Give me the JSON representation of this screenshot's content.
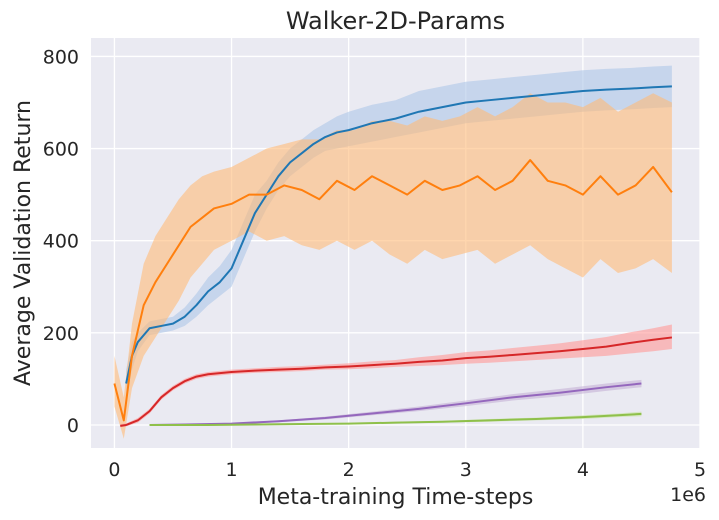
{
  "chart_data": {
    "type": "line",
    "title": "Walker-2D-Params",
    "xlabel": "Meta-training Time-steps",
    "ylabel": "Average Validation Return",
    "x_multiplier_label": "1e6",
    "xlim": [
      -0.2,
      5.0
    ],
    "ylim": [
      -50,
      840
    ],
    "xticks": [
      0,
      1,
      2,
      3,
      4,
      5
    ],
    "yticks": [
      0,
      200,
      400,
      600,
      800
    ],
    "grid": true,
    "legend": "none",
    "series": [
      {
        "color": "#1f77b4",
        "band_color": "#aec7e8",
        "x": [
          0.1,
          0.15,
          0.2,
          0.3,
          0.4,
          0.5,
          0.6,
          0.7,
          0.8,
          0.9,
          1.0,
          1.1,
          1.2,
          1.3,
          1.4,
          1.5,
          1.6,
          1.7,
          1.8,
          1.9,
          2.0,
          2.2,
          2.4,
          2.6,
          2.8,
          3.0,
          3.2,
          3.4,
          3.6,
          3.8,
          4.0,
          4.2,
          4.4,
          4.6,
          4.76
        ],
        "y": [
          90,
          150,
          180,
          210,
          215,
          220,
          235,
          260,
          290,
          310,
          340,
          400,
          460,
          500,
          540,
          570,
          590,
          610,
          625,
          635,
          640,
          655,
          665,
          680,
          690,
          700,
          705,
          710,
          715,
          720,
          725,
          728,
          730,
          733,
          735
        ],
        "lower": [
          60,
          120,
          160,
          195,
          200,
          205,
          215,
          235,
          260,
          280,
          300,
          360,
          420,
          470,
          510,
          540,
          560,
          580,
          595,
          600,
          605,
          615,
          625,
          635,
          645,
          655,
          660,
          665,
          670,
          675,
          680,
          683,
          685,
          688,
          690
        ],
        "upper": [
          120,
          180,
          200,
          225,
          230,
          235,
          255,
          285,
          320,
          345,
          380,
          440,
          500,
          530,
          570,
          600,
          620,
          640,
          655,
          670,
          680,
          695,
          705,
          725,
          735,
          745,
          750,
          755,
          760,
          765,
          770,
          773,
          775,
          778,
          780
        ]
      },
      {
        "color": "#ff7f0e",
        "band_color": "#ffbb78",
        "x": [
          0.0,
          0.08,
          0.15,
          0.25,
          0.35,
          0.45,
          0.55,
          0.65,
          0.75,
          0.85,
          1.0,
          1.15,
          1.3,
          1.45,
          1.6,
          1.75,
          1.9,
          2.05,
          2.2,
          2.35,
          2.5,
          2.65,
          2.8,
          2.95,
          3.1,
          3.25,
          3.4,
          3.55,
          3.7,
          3.85,
          4.0,
          4.15,
          4.3,
          4.45,
          4.6,
          4.76
        ],
        "y": [
          90,
          10,
          150,
          260,
          310,
          350,
          390,
          430,
          450,
          470,
          480,
          500,
          500,
          520,
          510,
          490,
          530,
          510,
          540,
          520,
          500,
          530,
          510,
          520,
          540,
          510,
          530,
          575,
          530,
          520,
          500,
          540,
          500,
          520,
          560,
          505
        ],
        "lower": [
          40,
          -30,
          80,
          150,
          190,
          230,
          270,
          320,
          350,
          380,
          400,
          420,
          400,
          410,
          390,
          380,
          400,
          380,
          400,
          370,
          350,
          380,
          360,
          370,
          380,
          350,
          370,
          390,
          360,
          340,
          320,
          360,
          330,
          340,
          360,
          330
        ],
        "upper": [
          150,
          60,
          220,
          350,
          410,
          450,
          490,
          520,
          540,
          550,
          560,
          580,
          600,
          610,
          620,
          620,
          640,
          640,
          660,
          660,
          650,
          670,
          660,
          670,
          690,
          670,
          690,
          720,
          700,
          700,
          690,
          710,
          680,
          700,
          720,
          700
        ]
      },
      {
        "color": "#d62728",
        "band_color": "#ff9896",
        "x": [
          0.05,
          0.1,
          0.2,
          0.3,
          0.4,
          0.5,
          0.6,
          0.7,
          0.8,
          1.0,
          1.2,
          1.4,
          1.6,
          1.8,
          2.0,
          2.2,
          2.4,
          2.6,
          2.8,
          3.0,
          3.2,
          3.4,
          3.6,
          3.8,
          4.0,
          4.2,
          4.4,
          4.6,
          4.76
        ],
        "y": [
          -2,
          0,
          10,
          30,
          60,
          80,
          95,
          105,
          110,
          115,
          118,
          120,
          122,
          125,
          127,
          130,
          133,
          137,
          140,
          145,
          148,
          152,
          156,
          160,
          165,
          170,
          178,
          185,
          190
        ],
        "lower": [
          -5,
          -3,
          5,
          25,
          55,
          75,
          90,
          100,
          105,
          110,
          113,
          115,
          117,
          120,
          121,
          123,
          126,
          128,
          130,
          133,
          135,
          138,
          141,
          144,
          147,
          150,
          155,
          160,
          165
        ],
        "upper": [
          2,
          3,
          15,
          35,
          65,
          85,
          100,
          110,
          115,
          120,
          123,
          126,
          128,
          131,
          134,
          138,
          141,
          147,
          152,
          158,
          162,
          167,
          172,
          177,
          184,
          191,
          201,
          210,
          218
        ]
      },
      {
        "color": "#9467bd",
        "band_color": "#c5b0d5",
        "x": [
          0.3,
          0.6,
          1.0,
          1.4,
          1.8,
          2.2,
          2.6,
          3.0,
          3.4,
          3.8,
          4.2,
          4.5
        ],
        "y": [
          0,
          1,
          3,
          8,
          15,
          25,
          35,
          47,
          60,
          70,
          82,
          90
        ],
        "lower": [
          -1,
          0,
          2,
          6,
          12,
          21,
          30,
          41,
          53,
          62,
          74,
          82
        ],
        "upper": [
          1,
          2,
          4,
          10,
          18,
          29,
          40,
          53,
          67,
          78,
          90,
          98
        ]
      },
      {
        "color": "#8fc04b",
        "band_color": "#c7e3a0",
        "x": [
          0.3,
          0.8,
          1.2,
          1.6,
          2.0,
          2.4,
          2.8,
          3.2,
          3.6,
          4.0,
          4.3,
          4.5
        ],
        "y": [
          0,
          0,
          1,
          2,
          3,
          5,
          7,
          10,
          13,
          17,
          21,
          24
        ],
        "lower": [
          -1,
          -1,
          0,
          1,
          2,
          3,
          5,
          7,
          10,
          13,
          17,
          19
        ],
        "upper": [
          1,
          1,
          2,
          3,
          4,
          7,
          9,
          13,
          16,
          21,
          25,
          29
        ]
      }
    ]
  }
}
